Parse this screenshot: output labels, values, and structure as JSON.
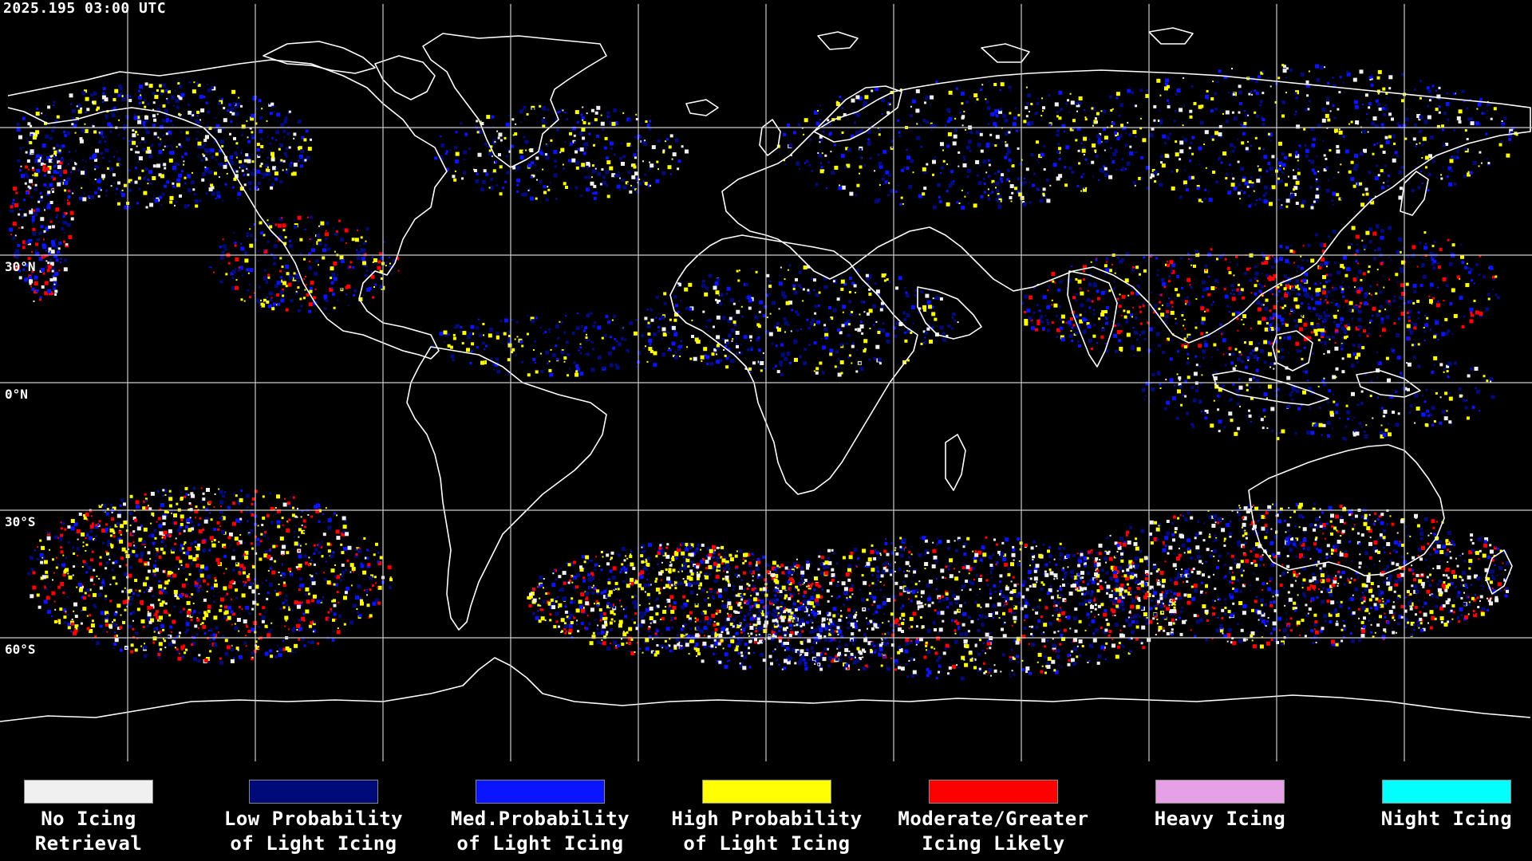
{
  "header": {
    "timestamp": "2025.195 03:00 UTC"
  },
  "map": {
    "projection": "equirectangular",
    "latitude_labels": [
      "30°N",
      "0°N",
      "30°S",
      "60°S"
    ]
  },
  "legend": {
    "items": [
      {
        "line1": "No Icing",
        "line2": "Retrieval",
        "color": "#f0f0f0"
      },
      {
        "line1": "Low Probability",
        "line2": "of Light Icing",
        "color": "#000a78"
      },
      {
        "line1": "Med.Probability",
        "line2": "of Light Icing",
        "color": "#0a14ff"
      },
      {
        "line1": "High Probability",
        "line2": "of Light Icing",
        "color": "#ffff00"
      },
      {
        "line1": "Moderate/Greater",
        "line2": "Icing Likely",
        "color": "#ff0000"
      },
      {
        "line1": "Heavy Icing",
        "line2": "",
        "color": "#e6a0e6"
      },
      {
        "line1": "Night Icing",
        "line2": "",
        "color": "#00ffff"
      }
    ]
  }
}
